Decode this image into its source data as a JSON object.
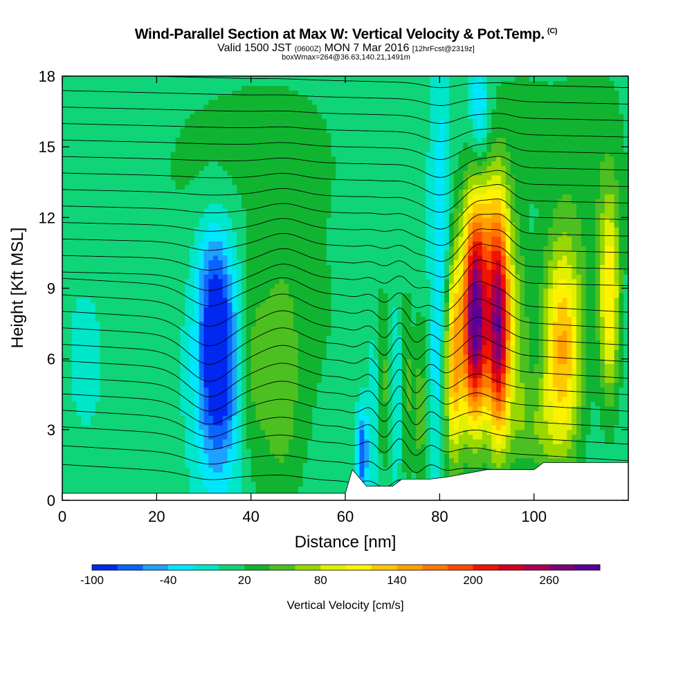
{
  "chart_data": {
    "type": "heatmap",
    "title": "Wind-Parallel Section at Max W: Vertical Velocity & Pot.Temp.",
    "title_mark": "(C)",
    "subtitle_valid": "Valid 1500 JST",
    "subtitle_utc": "(0600Z)",
    "subtitle_date": "MON 7 Mar 2016",
    "subtitle_fcst": "[12hrFcst@2319z]",
    "subtitle_box": "boxWmax=264@36.63,140.21,1491m",
    "xlabel": "Distance [nm]",
    "ylabel": "Height [Kft MSL]",
    "xlim": [
      0,
      120
    ],
    "ylim": [
      0,
      18
    ],
    "x_ticks": [
      0,
      20,
      40,
      60,
      80,
      100
    ],
    "y_ticks": [
      0,
      3,
      6,
      9,
      12,
      15,
      18
    ],
    "colorbar": {
      "label": "Vertical Velocity [cm/s]",
      "range": [
        -100,
        300
      ],
      "step": 20,
      "tick_labels": [
        "-100",
        "-40",
        "20",
        "80",
        "140",
        "200",
        "260"
      ],
      "tick_values": [
        -100,
        -40,
        20,
        80,
        140,
        200,
        260
      ],
      "colors": [
        "#0028f0",
        "#0a64ff",
        "#1ea0ff",
        "#00e6ff",
        "#00e6c8",
        "#10d478",
        "#10b430",
        "#4cc020",
        "#98d800",
        "#e0f000",
        "#fff200",
        "#ffc800",
        "#ffa000",
        "#ff7800",
        "#ff4a00",
        "#f01400",
        "#d2001e",
        "#aa0050",
        "#800078",
        "#5a009a"
      ]
    },
    "updrafts": [
      {
        "x": 87.5,
        "height": 7.6,
        "value": 264
      },
      {
        "x": 92.5,
        "height": 7.3,
        "value": 240
      },
      {
        "x": 83,
        "height": 6.5,
        "value": 150
      },
      {
        "x": 106,
        "height": 6.5,
        "value": 130
      },
      {
        "x": 46,
        "height": 5.0,
        "value": 40
      }
    ],
    "downdrafts": [
      {
        "x": 33,
        "height": 5.6,
        "value": -100
      },
      {
        "x": 63.5,
        "height": 2.0,
        "value": -80
      },
      {
        "x": 88.5,
        "height": 17.0,
        "value": -40
      }
    ],
    "terrain_heights_kft": [
      {
        "x": 0,
        "h": 0.3
      },
      {
        "x": 60,
        "h": 0.3
      },
      {
        "x": 61.5,
        "h": 1.3
      },
      {
        "x": 64.5,
        "h": 0.6
      },
      {
        "x": 70,
        "h": 0.6
      },
      {
        "x": 72,
        "h": 0.9
      },
      {
        "x": 78,
        "h": 0.9
      },
      {
        "x": 82,
        "h": 1.0
      },
      {
        "x": 90,
        "h": 1.3
      },
      {
        "x": 94,
        "h": 1.3
      },
      {
        "x": 100,
        "h": 1.3
      },
      {
        "x": 102,
        "h": 1.6
      },
      {
        "x": 120,
        "h": 1.6
      }
    ],
    "isentrope_base_heights_kft": [
      0.8,
      1.6,
      2.4,
      3.1,
      3.8,
      4.5,
      5.2,
      5.9,
      6.6,
      7.3,
      8.0,
      8.7,
      9.4,
      10.1,
      10.8,
      11.5,
      12.2,
      12.9,
      13.6,
      14.3,
      15.0,
      15.7,
      16.4,
      17.1,
      17.8
    ]
  }
}
